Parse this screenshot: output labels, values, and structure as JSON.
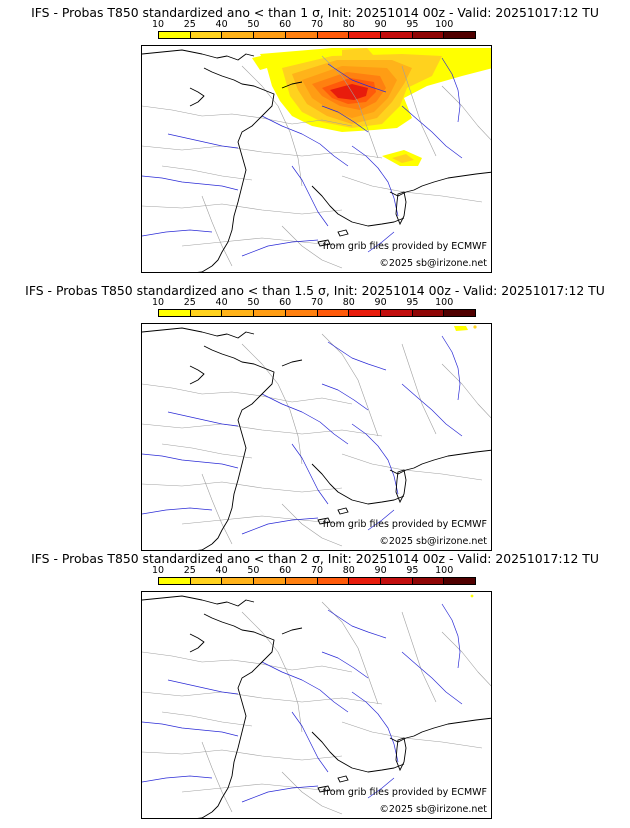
{
  "panels": [
    {
      "title": "IFS - Probas T850  standardized ano < than 1 σ, Init: 20251014 00z - Valid: 20251017:12 TU",
      "threshold_sigma": 1,
      "coverage": "high"
    },
    {
      "title": "IFS - Probas T850  standardized ano < than 1.5 σ, Init: 20251014 00z - Valid: 20251017:12 TU",
      "threshold_sigma": 1.5,
      "coverage": "trace"
    },
    {
      "title": "IFS - Probas T850  standardized ano < than 2 σ, Init: 20251014 00z - Valid: 20251017:12 TU",
      "threshold_sigma": 2,
      "coverage": "trace"
    }
  ],
  "colorbar": {
    "ticks": [
      "10",
      "25",
      "40",
      "50",
      "60",
      "70",
      "80",
      "90",
      "95",
      "100"
    ],
    "colors": [
      "#ffff00",
      "#ffd21e",
      "#ffb31a",
      "#ff9d14",
      "#ff8010",
      "#ff5a0a",
      "#e81c0c",
      "#c20e0e",
      "#8f0606",
      "#500000"
    ]
  },
  "credits": {
    "source": "from grib files provided by ECMWF",
    "copyright": "©2025 sb@irizone.net"
  },
  "map_colors": {
    "coast": "#000000",
    "rivers": "#2b2bd6",
    "borders": "#a0a0a0"
  }
}
